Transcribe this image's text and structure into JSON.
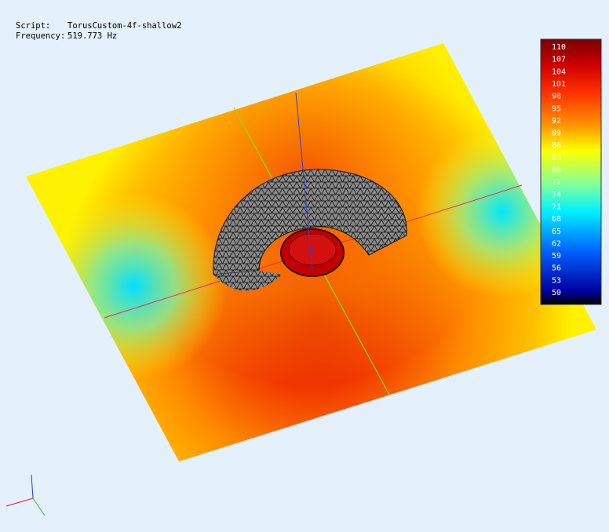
{
  "header": {
    "script_label": "Script:",
    "script_name": "TorusCustom-4f-shallow2",
    "frequency_label": "Frequency:",
    "frequency_value": "519.773 Hz"
  },
  "colorbar": {
    "labels": [
      110,
      107,
      104,
      101,
      98,
      95,
      92,
      89,
      86,
      83,
      80,
      77,
      74,
      71,
      68,
      65,
      62,
      59,
      56,
      53,
      50
    ]
  }
}
